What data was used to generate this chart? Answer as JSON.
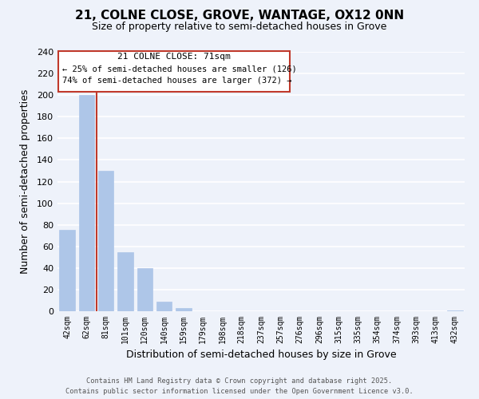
{
  "title": "21, COLNE CLOSE, GROVE, WANTAGE, OX12 0NN",
  "subtitle": "Size of property relative to semi-detached houses in Grove",
  "xlabel": "Distribution of semi-detached houses by size in Grove",
  "ylabel": "Number of semi-detached properties",
  "categories": [
    "42sqm",
    "62sqm",
    "81sqm",
    "101sqm",
    "120sqm",
    "140sqm",
    "159sqm",
    "179sqm",
    "198sqm",
    "218sqm",
    "237sqm",
    "257sqm",
    "276sqm",
    "296sqm",
    "315sqm",
    "335sqm",
    "354sqm",
    "374sqm",
    "393sqm",
    "413sqm",
    "432sqm"
  ],
  "values": [
    75,
    200,
    130,
    55,
    40,
    9,
    3,
    0,
    0,
    0,
    0,
    0,
    0,
    0,
    0,
    0,
    0,
    0,
    0,
    0,
    1
  ],
  "bar_color": "#aec6e8",
  "bar_edge_color": "#aec6e8",
  "marker_line_color": "#c0392b",
  "annotation_title": "21 COLNE CLOSE: 71sqm",
  "annotation_line1": "← 25% of semi-detached houses are smaller (126)",
  "annotation_line2": "74% of semi-detached houses are larger (372) →",
  "annotation_box_color": "#c0392b",
  "ylim": [
    0,
    240
  ],
  "yticks": [
    0,
    20,
    40,
    60,
    80,
    100,
    120,
    140,
    160,
    180,
    200,
    220,
    240
  ],
  "background_color": "#eef2fa",
  "grid_color": "#ffffff",
  "footer_line1": "Contains HM Land Registry data © Crown copyright and database right 2025.",
  "footer_line2": "Contains public sector information licensed under the Open Government Licence v3.0."
}
